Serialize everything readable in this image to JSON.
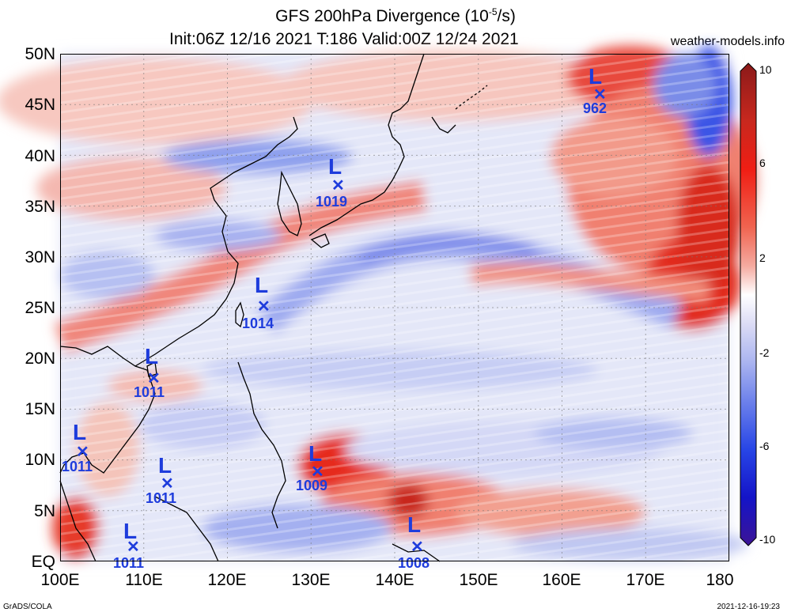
{
  "title": {
    "line1_prefix": "GFS 200hPa Divergence (10",
    "line1_exp": "-5",
    "line1_suffix": "/s)",
    "line2": "Init:06Z 12/16 2021 T:186 Valid:00Z 12/24 2021"
  },
  "site": "weather-models.info",
  "credits": {
    "left": "GrADS/COLA",
    "right": "2021-12-16-19:23"
  },
  "axes": {
    "lat_labels": [
      "50N",
      "45N",
      "40N",
      "35N",
      "30N",
      "25N",
      "20N",
      "15N",
      "10N",
      "5N",
      "EQ"
    ],
    "lon_labels": [
      "100E",
      "110E",
      "120E",
      "130E",
      "140E",
      "150E",
      "160E",
      "170E",
      "180"
    ]
  },
  "colorbar": {
    "labels": [
      "10",
      "6",
      "2",
      "-2",
      "-6",
      "-10"
    ],
    "colors": [
      "#8b1a1a",
      "#c8281e",
      "#f01e14",
      "#f06450",
      "#f5aaa0",
      "#fadcd2",
      "#ffffff",
      "#dcdcf5",
      "#aab4f0",
      "#6e82eb",
      "#2846e6",
      "#1414c8",
      "#3c1496"
    ]
  },
  "lows": [
    {
      "label": "L",
      "value": "962"
    },
    {
      "label": "L",
      "value": "1019"
    },
    {
      "label": "L",
      "value": "1014"
    },
    {
      "label": "L",
      "value": "1011"
    },
    {
      "label": "L",
      "value": "1011"
    },
    {
      "label": "L",
      "value": "1011"
    },
    {
      "label": "L",
      "value": "1011"
    },
    {
      "label": "L",
      "value": "1009"
    },
    {
      "label": "L",
      "value": "1008"
    }
  ]
}
